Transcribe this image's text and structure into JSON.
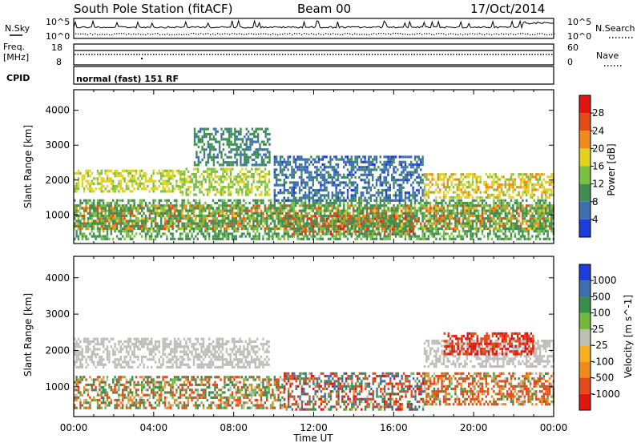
{
  "header": {
    "title": "South Pole Station (fitACF)",
    "beam": "Beam 00",
    "date": "17/Oct/2014"
  },
  "noise_panel": {
    "left_label": "N.Sky",
    "right_label": "N.Search",
    "ticks_left": [
      "10^5",
      "10^0"
    ],
    "ticks_right": [
      "10^5",
      "10^0"
    ]
  },
  "freq_panel": {
    "left_label_1": "Freq.",
    "left_label_2": "[MHz]",
    "right_label": "Nave",
    "ticks_left": [
      "18",
      "8"
    ],
    "ticks_right": [
      "60",
      "0"
    ]
  },
  "cpid_panel": {
    "label": "CPID",
    "text": "normal (fast) 151 RF"
  },
  "colors": {
    "power": [
      "#1e3cdc",
      "#3e6fb0",
      "#3f8f52",
      "#7ac043",
      "#e3d11e",
      "#f08a1a",
      "#e24a18",
      "#e01510"
    ],
    "velocity_low": [
      "#e01510",
      "#e24a18",
      "#f08a1a",
      "#f5b21c"
    ],
    "velocity_ground": "#bebdb8",
    "velocity_high": [
      "#72b83c",
      "#3a8e4c",
      "#3d6fae",
      "#1e3cdc"
    ]
  },
  "chart_data": [
    {
      "type": "heatmap",
      "name": "Power",
      "ylabel": "Slant Range [km]",
      "xlabel": "Time UT",
      "x_ticks": [
        "00:00",
        "04:00",
        "08:00",
        "12:00",
        "16:00",
        "20:00",
        "00:00"
      ],
      "x_range_hours": [
        0,
        24
      ],
      "y_ticks": [
        1000,
        2000,
        3000,
        4000
      ],
      "y_range_km": [
        180,
        4590
      ],
      "colorbar": {
        "label": "Power [dB]",
        "ticks": [
          "4",
          "8",
          "12",
          "16",
          "20",
          "24",
          "28"
        ],
        "range": [
          0,
          32
        ]
      },
      "bands": [
        {
          "t0": 0.0,
          "t1": 5.3,
          "r0": 1700,
          "r1": 2300,
          "v0": 14,
          "v1": 20
        },
        {
          "t0": 5.3,
          "t1": 9.8,
          "r0": 1550,
          "r1": 2350,
          "v0": 12,
          "v1": 18
        },
        {
          "t0": 6.0,
          "t1": 9.8,
          "r0": 2400,
          "r1": 3500,
          "v0": 6,
          "v1": 12
        },
        {
          "t0": 0.0,
          "t1": 24.0,
          "r0": 600,
          "r1": 1300,
          "v0": 18,
          "v1": 27
        },
        {
          "t0": 10.5,
          "t1": 17.0,
          "r0": 450,
          "r1": 1000,
          "v0": 22,
          "v1": 30
        },
        {
          "t0": 0.0,
          "t1": 24.0,
          "r0": 300,
          "r1": 1450,
          "v0": 8,
          "v1": 14
        },
        {
          "t0": 17.5,
          "t1": 24.0,
          "r0": 1500,
          "r1": 2200,
          "v0": 14,
          "v1": 22
        },
        {
          "t0": 10.0,
          "t1": 17.5,
          "r0": 1450,
          "r1": 2700,
          "v0": 3,
          "v1": 10
        }
      ]
    },
    {
      "type": "heatmap",
      "name": "Velocity",
      "ylabel": "Slant Range [km]",
      "xlabel": "Time UT",
      "x_ticks": [
        "00:00",
        "04:00",
        "08:00",
        "12:00",
        "16:00",
        "20:00",
        "00:00"
      ],
      "x_range_hours": [
        0,
        24
      ],
      "y_ticks": [
        1000,
        2000,
        3000,
        4000
      ],
      "y_range_km": [
        180,
        4590
      ],
      "colorbar": {
        "label": "Velocity [m s^-1]",
        "ticks": [
          "1000",
          "500",
          "100",
          "25",
          "-25",
          "-100",
          "-500",
          "-1000"
        ],
        "range": [
          -1000,
          1000
        ]
      },
      "bands": [
        {
          "t0": 0.0,
          "t1": 9.8,
          "r0": 1550,
          "r1": 2350,
          "v0": -20,
          "v1": 20
        },
        {
          "t0": 17.5,
          "t1": 24.0,
          "r0": 1550,
          "r1": 2300,
          "v0": -20,
          "v1": 20
        },
        {
          "t0": 0.0,
          "t1": 10.5,
          "r0": 450,
          "r1": 1300,
          "v0": -300,
          "v1": 300
        },
        {
          "t0": 10.5,
          "t1": 17.5,
          "r0": 400,
          "r1": 1400,
          "v0": -800,
          "v1": 800
        },
        {
          "t0": 17.5,
          "t1": 24.0,
          "r0": 500,
          "r1": 1400,
          "v0": -400,
          "v1": 150
        },
        {
          "t0": 18.5,
          "t1": 23.0,
          "r0": 1900,
          "r1": 2500,
          "v0": -800,
          "v1": -200
        }
      ]
    }
  ]
}
